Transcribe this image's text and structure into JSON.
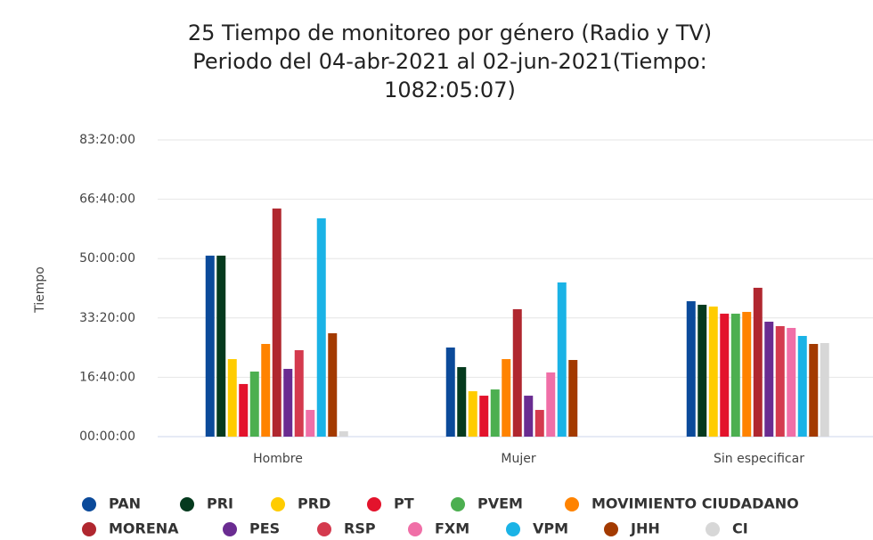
{
  "chart_data": {
    "type": "bar",
    "title": [
      "25 Tiempo de monitoreo por género (Radio y TV)",
      "Periodo del 04-abr-2021 al 02-jun-2021(Tiempo:",
      "1082:05:07)"
    ],
    "ylabel": "Tiempo",
    "categories": [
      "Hombre",
      "Mujer",
      "Sin especificar"
    ],
    "ylim": [
      0,
      300000
    ],
    "yticks": [
      {
        "value": 0,
        "label": "00:00:00"
      },
      {
        "value": 60000,
        "label": "16:40:00"
      },
      {
        "value": 120000,
        "label": "33:20:00"
      },
      {
        "value": 180000,
        "label": "50:00:00"
      },
      {
        "value": 240000,
        "label": "66:40:00"
      },
      {
        "value": 300000,
        "label": "83:20:00"
      }
    ],
    "grid": true,
    "legend": "bottom",
    "series": [
      {
        "name": "PAN",
        "color": "#0b4a9a",
        "values": [
          183000,
          90100,
          136900
        ]
      },
      {
        "name": "PRI",
        "color": "#053a1e",
        "values": [
          183000,
          70300,
          133300
        ]
      },
      {
        "name": "PRD",
        "color": "#ffcc00",
        "values": [
          78400,
          45900,
          131500
        ]
      },
      {
        "name": "PT",
        "color": "#e3132c",
        "values": [
          53200,
          41400,
          124300
        ]
      },
      {
        "name": "PVEM",
        "color": "#4caf50",
        "values": [
          65800,
          47700,
          124300
        ]
      },
      {
        "name": "MOVIMIENTO CIUDADANO",
        "color": "#ff8300",
        "values": [
          93700,
          78400,
          126100
        ]
      },
      {
        "name": "MORENA",
        "color": "#b0272f",
        "values": [
          230600,
          128800,
          150500
        ]
      },
      {
        "name": "PES",
        "color": "#6a2c91",
        "values": [
          68500,
          41400,
          116200
        ]
      },
      {
        "name": "RSP",
        "color": "#d43a4e",
        "values": [
          87400,
          27000,
          111700
        ]
      },
      {
        "name": "FXM",
        "color": "#f06fa7",
        "values": [
          27000,
          64900,
          109900
        ]
      },
      {
        "name": "VPM",
        "color": "#1ab3e6",
        "values": [
          220700,
          155900,
          101800
        ]
      },
      {
        "name": "JHH",
        "color": "#a33a00",
        "values": [
          104500,
          77500,
          93700
        ]
      },
      {
        "name": "CI",
        "color": "#d7d7d7",
        "values": [
          5400,
          0,
          94600
        ]
      }
    ]
  }
}
